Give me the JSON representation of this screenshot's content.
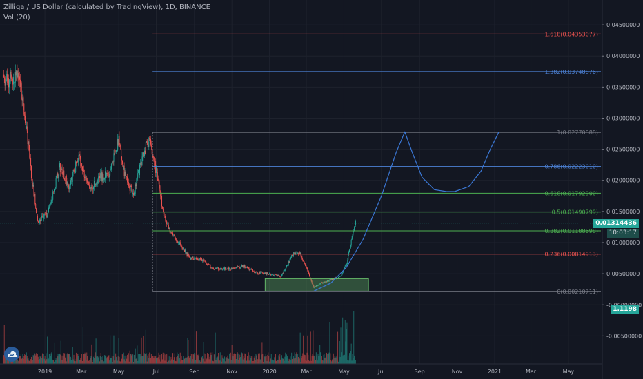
{
  "header": {
    "title": "Zilliqa / US Dollar (calculated by TradingView), 1D, BINANCE",
    "indicator": "Vol (20)"
  },
  "price_tags": {
    "last_price": "0.01314436",
    "countdown": "10:03:17",
    "volume": "1.1198"
  },
  "colors": {
    "background": "#131722",
    "up": "#26a69a",
    "down": "#ef5350",
    "fib_red": "#ef5350",
    "fib_blue": "#4d82d6",
    "fib_green": "#4caf50",
    "fib_gray": "#787b86",
    "projection": "#3b78d6",
    "zone": "#66bb6a"
  },
  "icons": {
    "logo": "tradingview-cloud-icon"
  },
  "chart_data": {
    "type": "candlestick",
    "title": "Zilliqa / US Dollar (calculated by TradingView), 1D, BINANCE",
    "x_tick_labels": [
      "2019",
      "Mar",
      "May",
      "Jul",
      "Sep",
      "Nov",
      "2020",
      "Mar",
      "May",
      "Jul",
      "Sep",
      "Nov",
      "2021",
      "Mar",
      "May"
    ],
    "y_tick_labels": [
      "0.04500000",
      "0.04000000",
      "0.03500000",
      "0.03000000",
      "0.02500000",
      "0.02000000",
      "0.01500000",
      "0.01000000",
      "0.00500000",
      "-0.00000000",
      "-0.00500000"
    ],
    "y_ticks": [
      0.045,
      0.04,
      0.035,
      0.03,
      0.025,
      0.02,
      0.015,
      0.01,
      0.005,
      0.0,
      -0.005
    ],
    "ylim": [
      -0.0095,
      0.049
    ],
    "x_range": [
      "2018-10-20",
      "2021-06-25"
    ],
    "price_path": {
      "dates": [
        "2018-11-01",
        "2018-11-20",
        "2018-12-01",
        "2018-12-10",
        "2018-12-20",
        "2019-01-05",
        "2019-01-25",
        "2019-02-10",
        "2019-02-25",
        "2019-03-15",
        "2019-04-01",
        "2019-04-15",
        "2019-05-01",
        "2019-05-10",
        "2019-05-25",
        "2019-06-10",
        "2019-06-20",
        "2019-07-01",
        "2019-07-15",
        "2019-07-25",
        "2019-08-10",
        "2019-08-25",
        "2019-09-15",
        "2019-10-01",
        "2019-10-15",
        "2019-11-01",
        "2019-11-20",
        "2019-12-10",
        "2019-12-31",
        "2020-01-20",
        "2020-02-10",
        "2020-02-20",
        "2020-03-01",
        "2020-03-13",
        "2020-03-25",
        "2020-04-10",
        "2020-04-25",
        "2020-05-05",
        "2020-05-15",
        "2020-05-20"
      ],
      "close": [
        0.036,
        0.037,
        0.029,
        0.021,
        0.0135,
        0.0145,
        0.022,
        0.019,
        0.024,
        0.0185,
        0.0205,
        0.021,
        0.0265,
        0.021,
        0.0175,
        0.0245,
        0.0265,
        0.0215,
        0.0135,
        0.0115,
        0.0095,
        0.0075,
        0.0072,
        0.0058,
        0.0058,
        0.0058,
        0.0062,
        0.0052,
        0.005,
        0.0045,
        0.0085,
        0.0082,
        0.006,
        0.0028,
        0.0035,
        0.004,
        0.0045,
        0.0065,
        0.011,
        0.0131
      ]
    },
    "fib_levels": [
      {
        "ratio": 1.618,
        "price": 0.04353077,
        "label": "1.618(0.04353077)",
        "color": "red"
      },
      {
        "ratio": 1.382,
        "price": 0.03748876,
        "label": "1.382(0.03748876)",
        "color": "blue"
      },
      {
        "ratio": 1,
        "price": 0.02770888,
        "label": "1(0.02770888)",
        "color": "gray"
      },
      {
        "ratio": 0.786,
        "price": 0.0222301,
        "label": "0.786(0.02223010)",
        "color": "blue"
      },
      {
        "ratio": 0.618,
        "price": 0.017929,
        "label": "0.618(0.01792900)",
        "color": "green"
      },
      {
        "ratio": 0.5,
        "price": 0.01490799,
        "label": "0.5(0.01490799)",
        "color": "green"
      },
      {
        "ratio": 0.382,
        "price": 0.01188698,
        "label": "0.382(0.01188698)",
        "color": "green"
      },
      {
        "ratio": 0.236,
        "price": 0.00814913,
        "label": "0.236(0.00814913)",
        "color": "red"
      },
      {
        "ratio": 0,
        "price": 0.00210711,
        "label": "0(0.00210711)",
        "color": "gray"
      }
    ],
    "fib_start_date": "2019-06-25",
    "support_zone": {
      "from": "2019-12-25",
      "to": "2020-06-10",
      "low": 0.0022,
      "high": 0.0042
    },
    "projection_path": {
      "dates": [
        "2020-03-13",
        "2020-04-10",
        "2020-05-05",
        "2020-06-01",
        "2020-07-01",
        "2020-07-25",
        "2020-08-08",
        "2020-08-20",
        "2020-09-05",
        "2020-09-25",
        "2020-10-15",
        "2020-10-28",
        "2020-11-20",
        "2020-12-10",
        "2020-12-25",
        "2021-01-08"
      ],
      "price": [
        0.0022,
        0.0035,
        0.006,
        0.0105,
        0.0175,
        0.0245,
        0.0278,
        0.0245,
        0.0205,
        0.0185,
        0.0182,
        0.0182,
        0.019,
        0.0215,
        0.025,
        0.0278
      ]
    },
    "current_price": 0.01314436,
    "volume_axis_value": 1.1198
  }
}
